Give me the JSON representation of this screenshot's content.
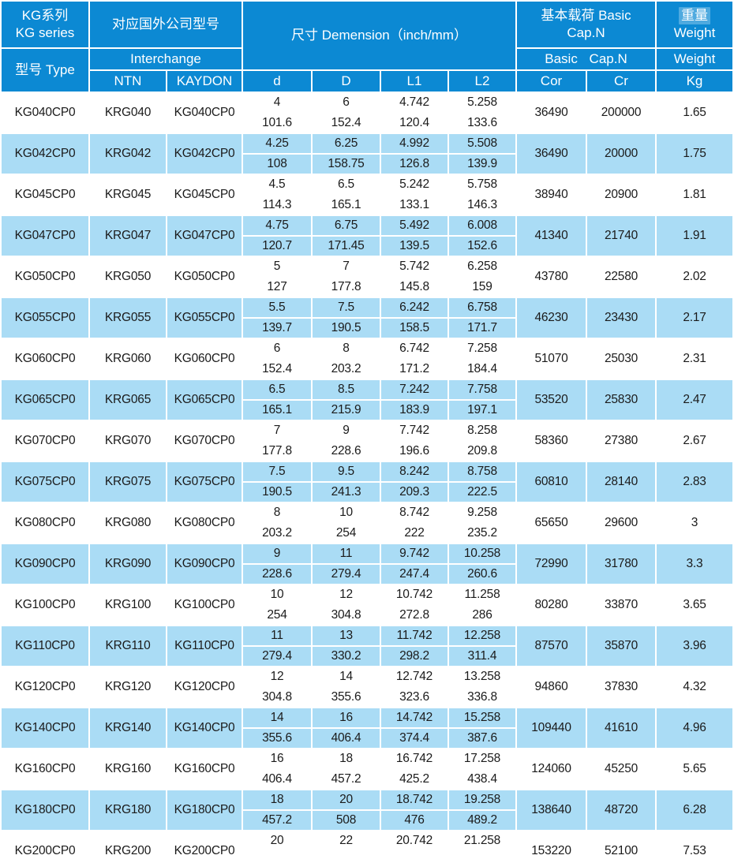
{
  "colors": {
    "header_bg": "#0C89D3",
    "header_text": "#FFFFFF",
    "row_bg": "#FFFFFF",
    "row_alt_bg": "#AADCF5",
    "text": "#1A1A1A"
  },
  "header": {
    "kg_series_zh": "KG系列",
    "kg_series_en": "KG series",
    "type_label": "型号 Type",
    "interchange_zh": "对应国外公司型号",
    "interchange_en": "Interchange",
    "ntn": "NTN",
    "kaydon": "KAYDON",
    "dimension": "尺寸 Demension（inch/mm）",
    "basic_cap_line1": "基本载荷 Basic",
    "basic_cap_line2": "Cap.N",
    "basic_cap_sub": "Basic Cap.N",
    "weight_zh": "重量",
    "weight_en": "Weight",
    "weight_sub": "Weight",
    "col_d": "d",
    "col_D": "D",
    "col_L1": "L1",
    "col_L2": "L2",
    "col_cor": "Cor",
    "col_cr": "Cr",
    "col_kg": "Kg"
  },
  "rows": [
    {
      "type": "KG040CP0",
      "ntn": "KRG040",
      "kaydon": "KG040CP0",
      "d": [
        "4",
        "101.6"
      ],
      "D": [
        "6",
        "152.4"
      ],
      "L1": [
        "4.742",
        "120.4"
      ],
      "L2": [
        "5.258",
        "133.6"
      ],
      "cor": "36490",
      "cr": "200000",
      "kg": "1.65"
    },
    {
      "type": "KG042CP0",
      "ntn": "KRG042",
      "kaydon": "KG042CP0",
      "d": [
        "4.25",
        "108"
      ],
      "D": [
        "6.25",
        "158.75"
      ],
      "L1": [
        "4.992",
        "126.8"
      ],
      "L2": [
        "5.508",
        "139.9"
      ],
      "cor": "36490",
      "cr": "20000",
      "kg": "1.75"
    },
    {
      "type": "KG045CP0",
      "ntn": "KRG045",
      "kaydon": "KG045CP0",
      "d": [
        "4.5",
        "114.3"
      ],
      "D": [
        "6.5",
        "165.1"
      ],
      "L1": [
        "5.242",
        "133.1"
      ],
      "L2": [
        "5.758",
        "146.3"
      ],
      "cor": "38940",
      "cr": "20900",
      "kg": "1.81"
    },
    {
      "type": "KG047CP0",
      "ntn": "KRG047",
      "kaydon": "KG047CP0",
      "d": [
        "4.75",
        "120.7"
      ],
      "D": [
        "6.75",
        "171.45"
      ],
      "L1": [
        "5.492",
        "139.5"
      ],
      "L2": [
        "6.008",
        "152.6"
      ],
      "cor": "41340",
      "cr": "21740",
      "kg": "1.91"
    },
    {
      "type": "KG050CP0",
      "ntn": "KRG050",
      "kaydon": "KG050CP0",
      "d": [
        "5",
        "127"
      ],
      "D": [
        "7",
        "177.8"
      ],
      "L1": [
        "5.742",
        "145.8"
      ],
      "L2": [
        "6.258",
        "159"
      ],
      "cor": "43780",
      "cr": "22580",
      "kg": "2.02"
    },
    {
      "type": "KG055CP0",
      "ntn": "KRG055",
      "kaydon": "KG055CP0",
      "d": [
        "5.5",
        "139.7"
      ],
      "D": [
        "7.5",
        "190.5"
      ],
      "L1": [
        "6.242",
        "158.5"
      ],
      "L2": [
        "6.758",
        "171.7"
      ],
      "cor": "46230",
      "cr": "23430",
      "kg": "2.17"
    },
    {
      "type": "KG060CP0",
      "ntn": "KRG060",
      "kaydon": "KG060CP0",
      "d": [
        "6",
        "152.4"
      ],
      "D": [
        "8",
        "203.2"
      ],
      "L1": [
        "6.742",
        "171.2"
      ],
      "L2": [
        "7.258",
        "184.4"
      ],
      "cor": "51070",
      "cr": "25030",
      "kg": "2.31"
    },
    {
      "type": "KG065CP0",
      "ntn": "KRG065",
      "kaydon": "KG065CP0",
      "d": [
        "6.5",
        "165.1"
      ],
      "D": [
        "8.5",
        "215.9"
      ],
      "L1": [
        "7.242",
        "183.9"
      ],
      "L2": [
        "7.758",
        "197.1"
      ],
      "cor": "53520",
      "cr": "25830",
      "kg": "2.47"
    },
    {
      "type": "KG070CP0",
      "ntn": "KRG070",
      "kaydon": "KG070CP0",
      "d": [
        "7",
        "177.8"
      ],
      "D": [
        "9",
        "228.6"
      ],
      "L1": [
        "7.742",
        "196.6"
      ],
      "L2": [
        "8.258",
        "209.8"
      ],
      "cor": "58360",
      "cr": "27380",
      "kg": "2.67"
    },
    {
      "type": "KG075CP0",
      "ntn": "KRG075",
      "kaydon": "KG075CP0",
      "d": [
        "7.5",
        "190.5"
      ],
      "D": [
        "9.5",
        "241.3"
      ],
      "L1": [
        "8.242",
        "209.3"
      ],
      "L2": [
        "8.758",
        "222.5"
      ],
      "cor": "60810",
      "cr": "28140",
      "kg": "2.83"
    },
    {
      "type": "KG080CP0",
      "ntn": "KRG080",
      "kaydon": "KG080CP0",
      "d": [
        "8",
        "203.2"
      ],
      "D": [
        "10",
        "254"
      ],
      "L1": [
        "8.742",
        "222"
      ],
      "L2": [
        "9.258",
        "235.2"
      ],
      "cor": "65650",
      "cr": "29600",
      "kg": "3"
    },
    {
      "type": "KG090CP0",
      "ntn": "KRG090",
      "kaydon": "KG090CP0",
      "d": [
        "9",
        "228.6"
      ],
      "D": [
        "11",
        "279.4"
      ],
      "L1": [
        "9.742",
        "247.4"
      ],
      "L2": [
        "10.258",
        "260.6"
      ],
      "cor": "72990",
      "cr": "31780",
      "kg": "3.3"
    },
    {
      "type": "KG100CP0",
      "ntn": "KRG100",
      "kaydon": "KG100CP0",
      "d": [
        "10",
        "254"
      ],
      "D": [
        "12",
        "304.8"
      ],
      "L1": [
        "10.742",
        "272.8"
      ],
      "L2": [
        "11.258",
        "286"
      ],
      "cor": "80280",
      "cr": "33870",
      "kg": "3.65"
    },
    {
      "type": "KG110CP0",
      "ntn": "KRG110",
      "kaydon": "KG110CP0",
      "d": [
        "11",
        "279.4"
      ],
      "D": [
        "13",
        "330.2"
      ],
      "L1": [
        "11.742",
        "298.2"
      ],
      "L2": [
        "12.258",
        "311.4"
      ],
      "cor": "87570",
      "cr": "35870",
      "kg": "3.96"
    },
    {
      "type": "KG120CP0",
      "ntn": "KRG120",
      "kaydon": "KG120CP0",
      "d": [
        "12",
        "304.8"
      ],
      "D": [
        "14",
        "355.6"
      ],
      "L1": [
        "12.742",
        "323.6"
      ],
      "L2": [
        "13.258",
        "336.8"
      ],
      "cor": "94860",
      "cr": "37830",
      "kg": "4.32"
    },
    {
      "type": "KG140CP0",
      "ntn": "KRG140",
      "kaydon": "KG140CP0",
      "d": [
        "14",
        "355.6"
      ],
      "D": [
        "16",
        "406.4"
      ],
      "L1": [
        "14.742",
        "374.4"
      ],
      "L2": [
        "15.258",
        "387.6"
      ],
      "cor": "109440",
      "cr": "41610",
      "kg": "4.96"
    },
    {
      "type": "KG160CP0",
      "ntn": "KRG160",
      "kaydon": "KG160CP0",
      "d": [
        "16",
        "406.4"
      ],
      "D": [
        "18",
        "457.2"
      ],
      "L1": [
        "16.742",
        "425.2"
      ],
      "L2": [
        "17.258",
        "438.4"
      ],
      "cor": "124060",
      "cr": "45250",
      "kg": "5.65"
    },
    {
      "type": "KG180CP0",
      "ntn": "KRG180",
      "kaydon": "KG180CP0",
      "d": [
        "18",
        "457.2"
      ],
      "D": [
        "20",
        "508"
      ],
      "L1": [
        "18.742",
        "476"
      ],
      "L2": [
        "19.258",
        "489.2"
      ],
      "cor": "138640",
      "cr": "48720",
      "kg": "6.28"
    },
    {
      "type": "KG200CP0",
      "ntn": "KRG200",
      "kaydon": "KG200CP0",
      "d": [
        "20",
        ""
      ],
      "D": [
        "22",
        ""
      ],
      "L1": [
        "20.742",
        ""
      ],
      "L2": [
        "21.258",
        ""
      ],
      "cor": "153220",
      "cr": "52100",
      "kg": "7.53"
    }
  ]
}
